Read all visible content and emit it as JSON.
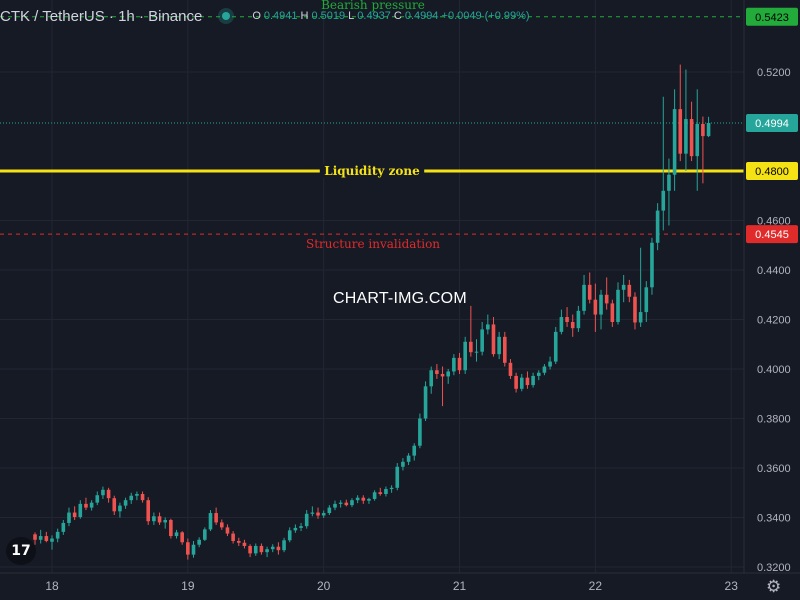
{
  "header": {
    "symbol": "CTK / TetherUS · 1h · Binance",
    "o_label": "O",
    "o_value": "0.4941",
    "h_label": "H",
    "h_value": "0.5019",
    "l_label": "L",
    "l_value": "0.4937",
    "c_label": "C",
    "c_value": "0.4994",
    "change": "+0.0049 (+0.99%)"
  },
  "watermark": "CHART-IMG.COM",
  "logo_text": "17",
  "chart_data": {
    "type": "candlestick",
    "y_ticks": [
      "0.3200",
      "0.3400",
      "0.3600",
      "0.3800",
      "0.4000",
      "0.4200",
      "0.4400",
      "0.4600",
      "0.5200"
    ],
    "ylim": [
      0.32,
      0.54
    ],
    "x_ticks": [
      {
        "label": "18",
        "x": 0
      },
      {
        "label": "19",
        "x": 24
      },
      {
        "label": "20",
        "x": 48
      },
      {
        "label": "21",
        "x": 72
      },
      {
        "label": "22",
        "x": 96
      },
      {
        "label": "23",
        "x": 120
      }
    ],
    "last_price": "0.4994",
    "levels": [
      {
        "label": "Bearish pressure",
        "price": 0.5423,
        "price_label": "0.5423",
        "color": "#22ab3a",
        "style": "dashed"
      },
      {
        "label": "Liquidity zone",
        "price": 0.48,
        "price_label": "0.4800",
        "color": "#f5e214",
        "style": "solid"
      },
      {
        "label": "Structure invalidation",
        "price": 0.4545,
        "price_label": "0.4545",
        "color": "#e02b2b",
        "style": "dashed"
      }
    ],
    "colors": {
      "up": "#26a69a",
      "down": "#ef5350",
      "grid": "#232632",
      "text": "#b2b5be",
      "last": "#26a69a"
    },
    "candles": [
      [
        -3,
        0.3332,
        0.334,
        0.329,
        0.331
      ],
      [
        -2,
        0.331,
        0.335,
        0.3295,
        0.3325
      ],
      [
        -1,
        0.3325,
        0.3342,
        0.33,
        0.3305
      ],
      [
        0,
        0.3302,
        0.3328,
        0.327,
        0.3315
      ],
      [
        1,
        0.3315,
        0.3355,
        0.33,
        0.3342
      ],
      [
        2,
        0.3342,
        0.339,
        0.333,
        0.3378
      ],
      [
        3,
        0.3378,
        0.344,
        0.3365,
        0.342
      ],
      [
        4,
        0.342,
        0.3445,
        0.339,
        0.3402
      ],
      [
        5,
        0.3402,
        0.347,
        0.3395,
        0.3455
      ],
      [
        6,
        0.3455,
        0.348,
        0.343,
        0.344
      ],
      [
        7,
        0.344,
        0.347,
        0.3428,
        0.346
      ],
      [
        8,
        0.346,
        0.3505,
        0.345,
        0.349
      ],
      [
        9,
        0.349,
        0.3525,
        0.3475,
        0.3512
      ],
      [
        10,
        0.3512,
        0.352,
        0.346,
        0.3478
      ],
      [
        11,
        0.3478,
        0.3488,
        0.341,
        0.3425
      ],
      [
        12,
        0.3425,
        0.346,
        0.34,
        0.3448
      ],
      [
        13,
        0.3448,
        0.348,
        0.3435,
        0.347
      ],
      [
        14,
        0.347,
        0.35,
        0.3455,
        0.3488
      ],
      [
        15,
        0.3488,
        0.3505,
        0.347,
        0.3495
      ],
      [
        16,
        0.3495,
        0.3505,
        0.346,
        0.347
      ],
      [
        17,
        0.347,
        0.3482,
        0.337,
        0.3385
      ],
      [
        18,
        0.3385,
        0.342,
        0.337,
        0.3405
      ],
      [
        19,
        0.3405,
        0.342,
        0.337,
        0.338
      ],
      [
        20,
        0.338,
        0.34,
        0.3355,
        0.339
      ],
      [
        21,
        0.339,
        0.3395,
        0.3315,
        0.3325
      ],
      [
        22,
        0.3325,
        0.335,
        0.3315,
        0.334
      ],
      [
        23,
        0.334,
        0.3345,
        0.329,
        0.33
      ],
      [
        24,
        0.33,
        0.3315,
        0.323,
        0.325
      ],
      [
        25,
        0.325,
        0.3305,
        0.3238,
        0.329
      ],
      [
        26,
        0.329,
        0.332,
        0.328,
        0.331
      ],
      [
        27,
        0.331,
        0.336,
        0.3305,
        0.3352
      ],
      [
        28,
        0.3352,
        0.343,
        0.3345,
        0.3418
      ],
      [
        29,
        0.3418,
        0.344,
        0.337,
        0.338
      ],
      [
        30,
        0.338,
        0.3392,
        0.335,
        0.336
      ],
      [
        31,
        0.336,
        0.3372,
        0.3325,
        0.3335
      ],
      [
        32,
        0.3335,
        0.3345,
        0.3295,
        0.3305
      ],
      [
        33,
        0.3305,
        0.3318,
        0.3285,
        0.3298
      ],
      [
        34,
        0.3298,
        0.331,
        0.3275,
        0.3285
      ],
      [
        35,
        0.3285,
        0.3292,
        0.324,
        0.3255
      ],
      [
        36,
        0.3255,
        0.3295,
        0.3245,
        0.3285
      ],
      [
        37,
        0.3285,
        0.3295,
        0.325,
        0.326
      ],
      [
        38,
        0.326,
        0.3282,
        0.324,
        0.3272
      ],
      [
        39,
        0.3272,
        0.3292,
        0.326,
        0.3282
      ],
      [
        40,
        0.3282,
        0.33,
        0.325,
        0.3268
      ],
      [
        41,
        0.3268,
        0.3318,
        0.326,
        0.3308
      ],
      [
        42,
        0.3308,
        0.336,
        0.33,
        0.3348
      ],
      [
        43,
        0.3348,
        0.3372,
        0.3338,
        0.3358
      ],
      [
        44,
        0.3358,
        0.3378,
        0.3345,
        0.3365
      ],
      [
        45,
        0.3365,
        0.343,
        0.3355,
        0.3415
      ],
      [
        46,
        0.3415,
        0.3445,
        0.3405,
        0.342
      ],
      [
        47,
        0.342,
        0.344,
        0.3395,
        0.3408
      ],
      [
        48,
        0.3408,
        0.3428,
        0.3398,
        0.3418
      ],
      [
        49,
        0.3418,
        0.345,
        0.341,
        0.344
      ],
      [
        50,
        0.344,
        0.3468,
        0.343,
        0.3455
      ],
      [
        51,
        0.3455,
        0.347,
        0.344,
        0.346
      ],
      [
        52,
        0.346,
        0.3472,
        0.3445,
        0.345
      ],
      [
        53,
        0.345,
        0.3478,
        0.3442,
        0.347
      ],
      [
        54,
        0.347,
        0.349,
        0.3458,
        0.348
      ],
      [
        55,
        0.348,
        0.349,
        0.3455,
        0.3468
      ],
      [
        56,
        0.3468,
        0.348,
        0.3455,
        0.3475
      ],
      [
        57,
        0.3475,
        0.351,
        0.3468,
        0.3502
      ],
      [
        58,
        0.3502,
        0.352,
        0.3488,
        0.3495
      ],
      [
        59,
        0.3495,
        0.3525,
        0.3485,
        0.3515
      ],
      [
        60,
        0.3515,
        0.353,
        0.35,
        0.352
      ],
      [
        61,
        0.352,
        0.362,
        0.351,
        0.3605
      ],
      [
        62,
        0.3605,
        0.364,
        0.359,
        0.3625
      ],
      [
        63,
        0.3625,
        0.366,
        0.3612,
        0.365
      ],
      [
        64,
        0.365,
        0.37,
        0.363,
        0.369
      ],
      [
        65,
        0.369,
        0.382,
        0.368,
        0.38
      ],
      [
        66,
        0.38,
        0.395,
        0.379,
        0.393
      ],
      [
        67,
        0.393,
        0.401,
        0.39,
        0.3995
      ],
      [
        68,
        0.3995,
        0.402,
        0.396,
        0.398
      ],
      [
        69,
        0.398,
        0.401,
        0.385,
        0.397
      ],
      [
        70,
        0.397,
        0.4,
        0.394,
        0.399
      ],
      [
        71,
        0.399,
        0.406,
        0.3975,
        0.4045
      ],
      [
        72,
        0.4045,
        0.4065,
        0.398,
        0.3995
      ],
      [
        73,
        0.3995,
        0.413,
        0.398,
        0.411
      ],
      [
        74,
        0.411,
        0.4255,
        0.405,
        0.4068
      ],
      [
        75,
        0.4068,
        0.412,
        0.403,
        0.407
      ],
      [
        76,
        0.407,
        0.419,
        0.4055,
        0.416
      ],
      [
        77,
        0.416,
        0.422,
        0.414,
        0.418
      ],
      [
        78,
        0.418,
        0.421,
        0.405,
        0.406
      ],
      [
        79,
        0.406,
        0.415,
        0.404,
        0.413
      ],
      [
        80,
        0.413,
        0.415,
        0.401,
        0.4025
      ],
      [
        81,
        0.4025,
        0.404,
        0.396,
        0.3972
      ],
      [
        82,
        0.3972,
        0.3985,
        0.3905,
        0.392
      ],
      [
        83,
        0.392,
        0.398,
        0.391,
        0.3965
      ],
      [
        84,
        0.3965,
        0.399,
        0.392,
        0.3935
      ],
      [
        85,
        0.3935,
        0.3985,
        0.3925,
        0.3972
      ],
      [
        86,
        0.3972,
        0.3995,
        0.3955,
        0.3985
      ],
      [
        87,
        0.3985,
        0.402,
        0.3975,
        0.401
      ],
      [
        88,
        0.401,
        0.405,
        0.3998,
        0.403
      ],
      [
        89,
        0.403,
        0.417,
        0.402,
        0.415
      ],
      [
        90,
        0.415,
        0.424,
        0.414,
        0.421
      ],
      [
        91,
        0.421,
        0.425,
        0.417,
        0.419
      ],
      [
        92,
        0.419,
        0.422,
        0.413,
        0.4165
      ],
      [
        93,
        0.4165,
        0.4255,
        0.415,
        0.4235
      ],
      [
        94,
        0.4235,
        0.438,
        0.422,
        0.434
      ],
      [
        95,
        0.434,
        0.439,
        0.4265,
        0.428
      ],
      [
        96,
        0.428,
        0.4345,
        0.415,
        0.422
      ],
      [
        97,
        0.422,
        0.432,
        0.416,
        0.43
      ],
      [
        98,
        0.43,
        0.437,
        0.424,
        0.4265
      ],
      [
        99,
        0.4265,
        0.428,
        0.417,
        0.419
      ],
      [
        100,
        0.419,
        0.435,
        0.418,
        0.432
      ],
      [
        101,
        0.432,
        0.438,
        0.427,
        0.434
      ],
      [
        102,
        0.434,
        0.436,
        0.427,
        0.4292
      ],
      [
        103,
        0.4292,
        0.431,
        0.416,
        0.4188
      ],
      [
        104,
        0.4188,
        0.449,
        0.417,
        0.423
      ],
      [
        105,
        0.423,
        0.4355,
        0.419,
        0.433
      ],
      [
        106,
        0.433,
        0.453,
        0.43,
        0.451
      ],
      [
        107,
        0.451,
        0.467,
        0.448,
        0.464
      ],
      [
        108,
        0.464,
        0.51,
        0.456,
        0.472
      ],
      [
        109,
        0.472,
        0.485,
        0.458,
        0.4785
      ],
      [
        110,
        0.4785,
        0.513,
        0.472,
        0.505
      ],
      [
        111,
        0.505,
        0.523,
        0.484,
        0.487
      ],
      [
        112,
        0.487,
        0.521,
        0.48,
        0.501
      ],
      [
        113,
        0.501,
        0.508,
        0.484,
        0.486
      ],
      [
        114,
        0.486,
        0.513,
        0.472,
        0.499
      ],
      [
        115,
        0.499,
        0.502,
        0.475,
        0.4941
      ],
      [
        116,
        0.4941,
        0.5019,
        0.4937,
        0.4994
      ]
    ]
  }
}
